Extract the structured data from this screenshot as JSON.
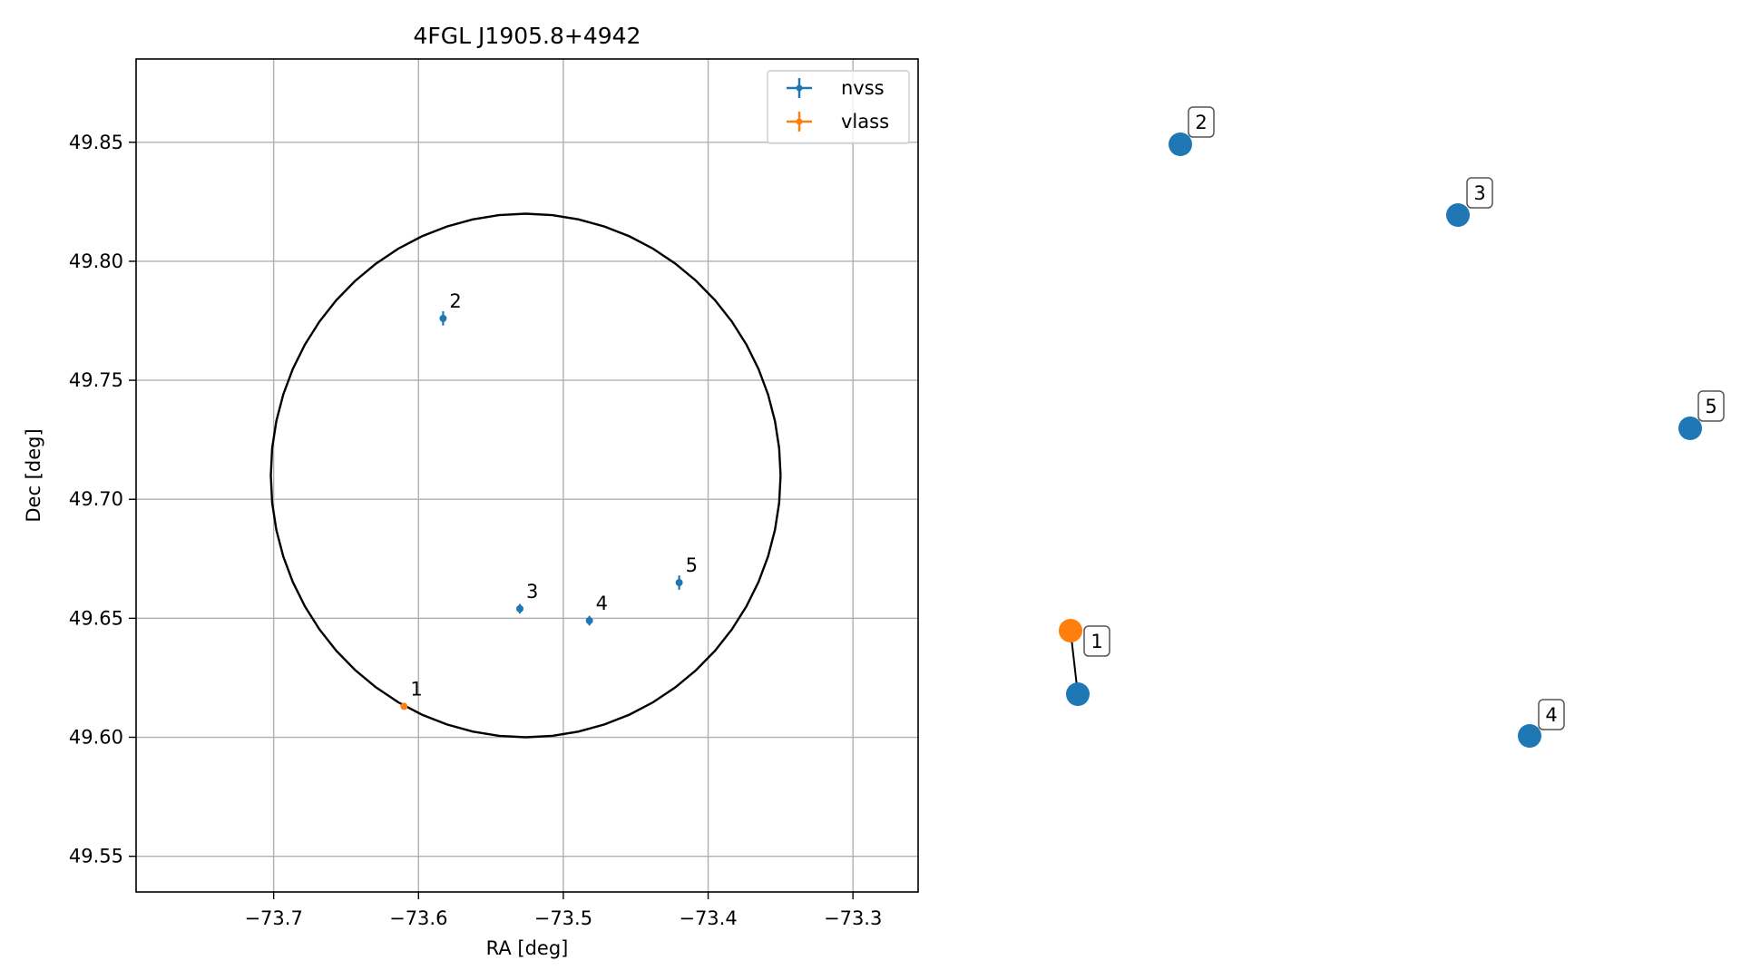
{
  "chart_data": [
    {
      "type": "scatter",
      "title": "4FGL J1905.8+4942",
      "xlabel": "RA [deg]",
      "ylabel": "Dec [deg]",
      "xlim": [
        -73.795,
        -73.255
      ],
      "ylim": [
        49.535,
        49.885
      ],
      "xticks": [
        -73.7,
        -73.6,
        -73.5,
        -73.4,
        -73.3
      ],
      "xtick_labels": [
        "−73.7",
        "−73.6",
        "−73.5",
        "−73.4",
        "−73.3"
      ],
      "yticks": [
        49.55,
        49.6,
        49.65,
        49.7,
        49.75,
        49.8,
        49.85
      ],
      "ytick_labels": [
        "49.55",
        "49.60",
        "49.65",
        "49.70",
        "49.75",
        "49.80",
        "49.85"
      ],
      "grid": true,
      "legend": {
        "placement": "top-right",
        "entries": [
          {
            "label": "nvss",
            "color": "#1f77b4"
          },
          {
            "label": "vlass",
            "color": "#ff7f0e"
          }
        ]
      },
      "series": [
        {
          "name": "nvss",
          "color": "#1f77b4",
          "points": [
            {
              "label": "2",
              "x": -73.583,
              "y": 49.776,
              "yerr": 0.003
            },
            {
              "label": "3",
              "x": -73.53,
              "y": 49.654,
              "yerr": 0.002
            },
            {
              "label": "4",
              "x": -73.482,
              "y": 49.649,
              "yerr": 0.002
            },
            {
              "label": "5",
              "x": -73.42,
              "y": 49.665,
              "yerr": 0.003
            }
          ]
        },
        {
          "name": "vlass",
          "color": "#ff7f0e",
          "points": [
            {
              "label": "1",
              "x": -73.61,
              "y": 49.613,
              "yerr": 0.001
            }
          ]
        }
      ],
      "ellipse": {
        "center": [
          -73.526,
          49.71
        ],
        "ra_radius": 0.176,
        "dec_radius": 0.11,
        "color": "#000000"
      }
    },
    {
      "type": "network",
      "nodes": [
        {
          "id": "1",
          "color": "#ff7f0e",
          "labelled": true
        },
        {
          "id": "1b",
          "color": "#1f77b4",
          "labelled": false
        },
        {
          "id": "2",
          "color": "#1f77b4",
          "labelled": true
        },
        {
          "id": "3",
          "color": "#1f77b4",
          "labelled": true
        },
        {
          "id": "4",
          "color": "#1f77b4",
          "labelled": true
        },
        {
          "id": "5",
          "color": "#1f77b4",
          "labelled": true
        }
      ],
      "edges": [
        [
          "1",
          "1b"
        ]
      ]
    }
  ]
}
